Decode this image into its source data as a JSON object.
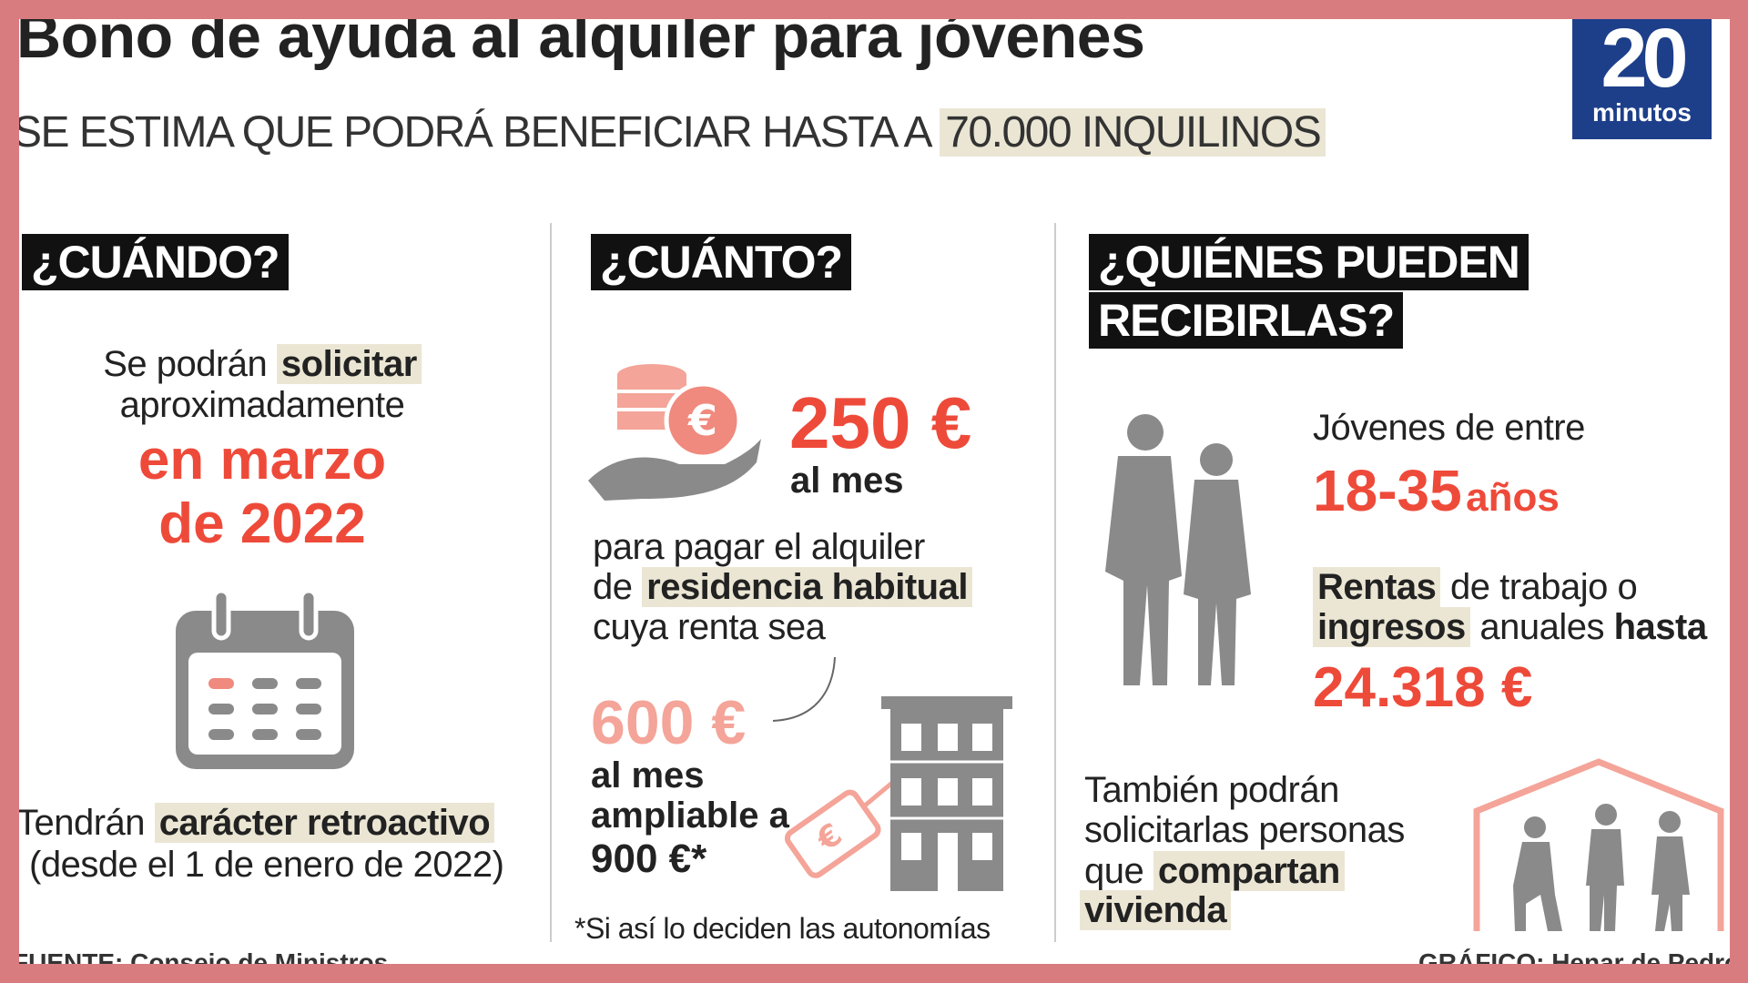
{
  "header": {
    "title": "Bono de ayuda al alquiler para jóvenes",
    "subtitle": "SE ESTIMA QUE PODRÁ BENEFICIAR HASTA A",
    "subtitle_highlight": "70.000 INQUILINOS",
    "logo_number": "20",
    "logo_word": "minutos"
  },
  "when": {
    "heading": "¿CUÁNDO?",
    "line1": "Se podrán",
    "line1_highlight": "solicitar",
    "line2": "aproximadamente",
    "date_line1": "en marzo",
    "date_line2": "de 2022",
    "retro_prefix": "Tendrán",
    "retro_highlight": "carácter retroactivo",
    "retro_detail": "(desde el 1 de enero de 2022)"
  },
  "how_much": {
    "heading": "¿CUÁNTO?",
    "amount": "250 €",
    "amount_period": "al mes",
    "purpose_line1": "para pagar el alquiler",
    "purpose_prefix": "de",
    "purpose_highlight": "residencia habitual",
    "purpose_line3": "cuya renta sea",
    "limit": "600 €",
    "limit_line1": "al mes",
    "limit_line2": "ampliable a",
    "limit_line3": "900 €*",
    "note": "*Si así lo deciden las autonomías"
  },
  "who": {
    "heading_line1": "¿QUIÉNES PUEDEN",
    "heading_line2": "RECIBIRLAS?",
    "age_intro": "Jóvenes de entre",
    "age_range": "18-35",
    "age_unit": "años",
    "income_word1": "Rentas",
    "income_text1": "de trabajo o",
    "income_word2": "ingresos",
    "income_text2": "anuales",
    "income_word3": "hasta",
    "income_limit": "24.318 €",
    "shared_line1": "También podrán",
    "shared_line2": "solicitarlas personas",
    "shared_line3": "que",
    "shared_highlight1": "compartan",
    "shared_highlight2": "vivienda"
  },
  "footer": {
    "source": "FUENTE: Consejo de Ministros",
    "credit": "GRÁFICO: Henar de Pedro"
  }
}
